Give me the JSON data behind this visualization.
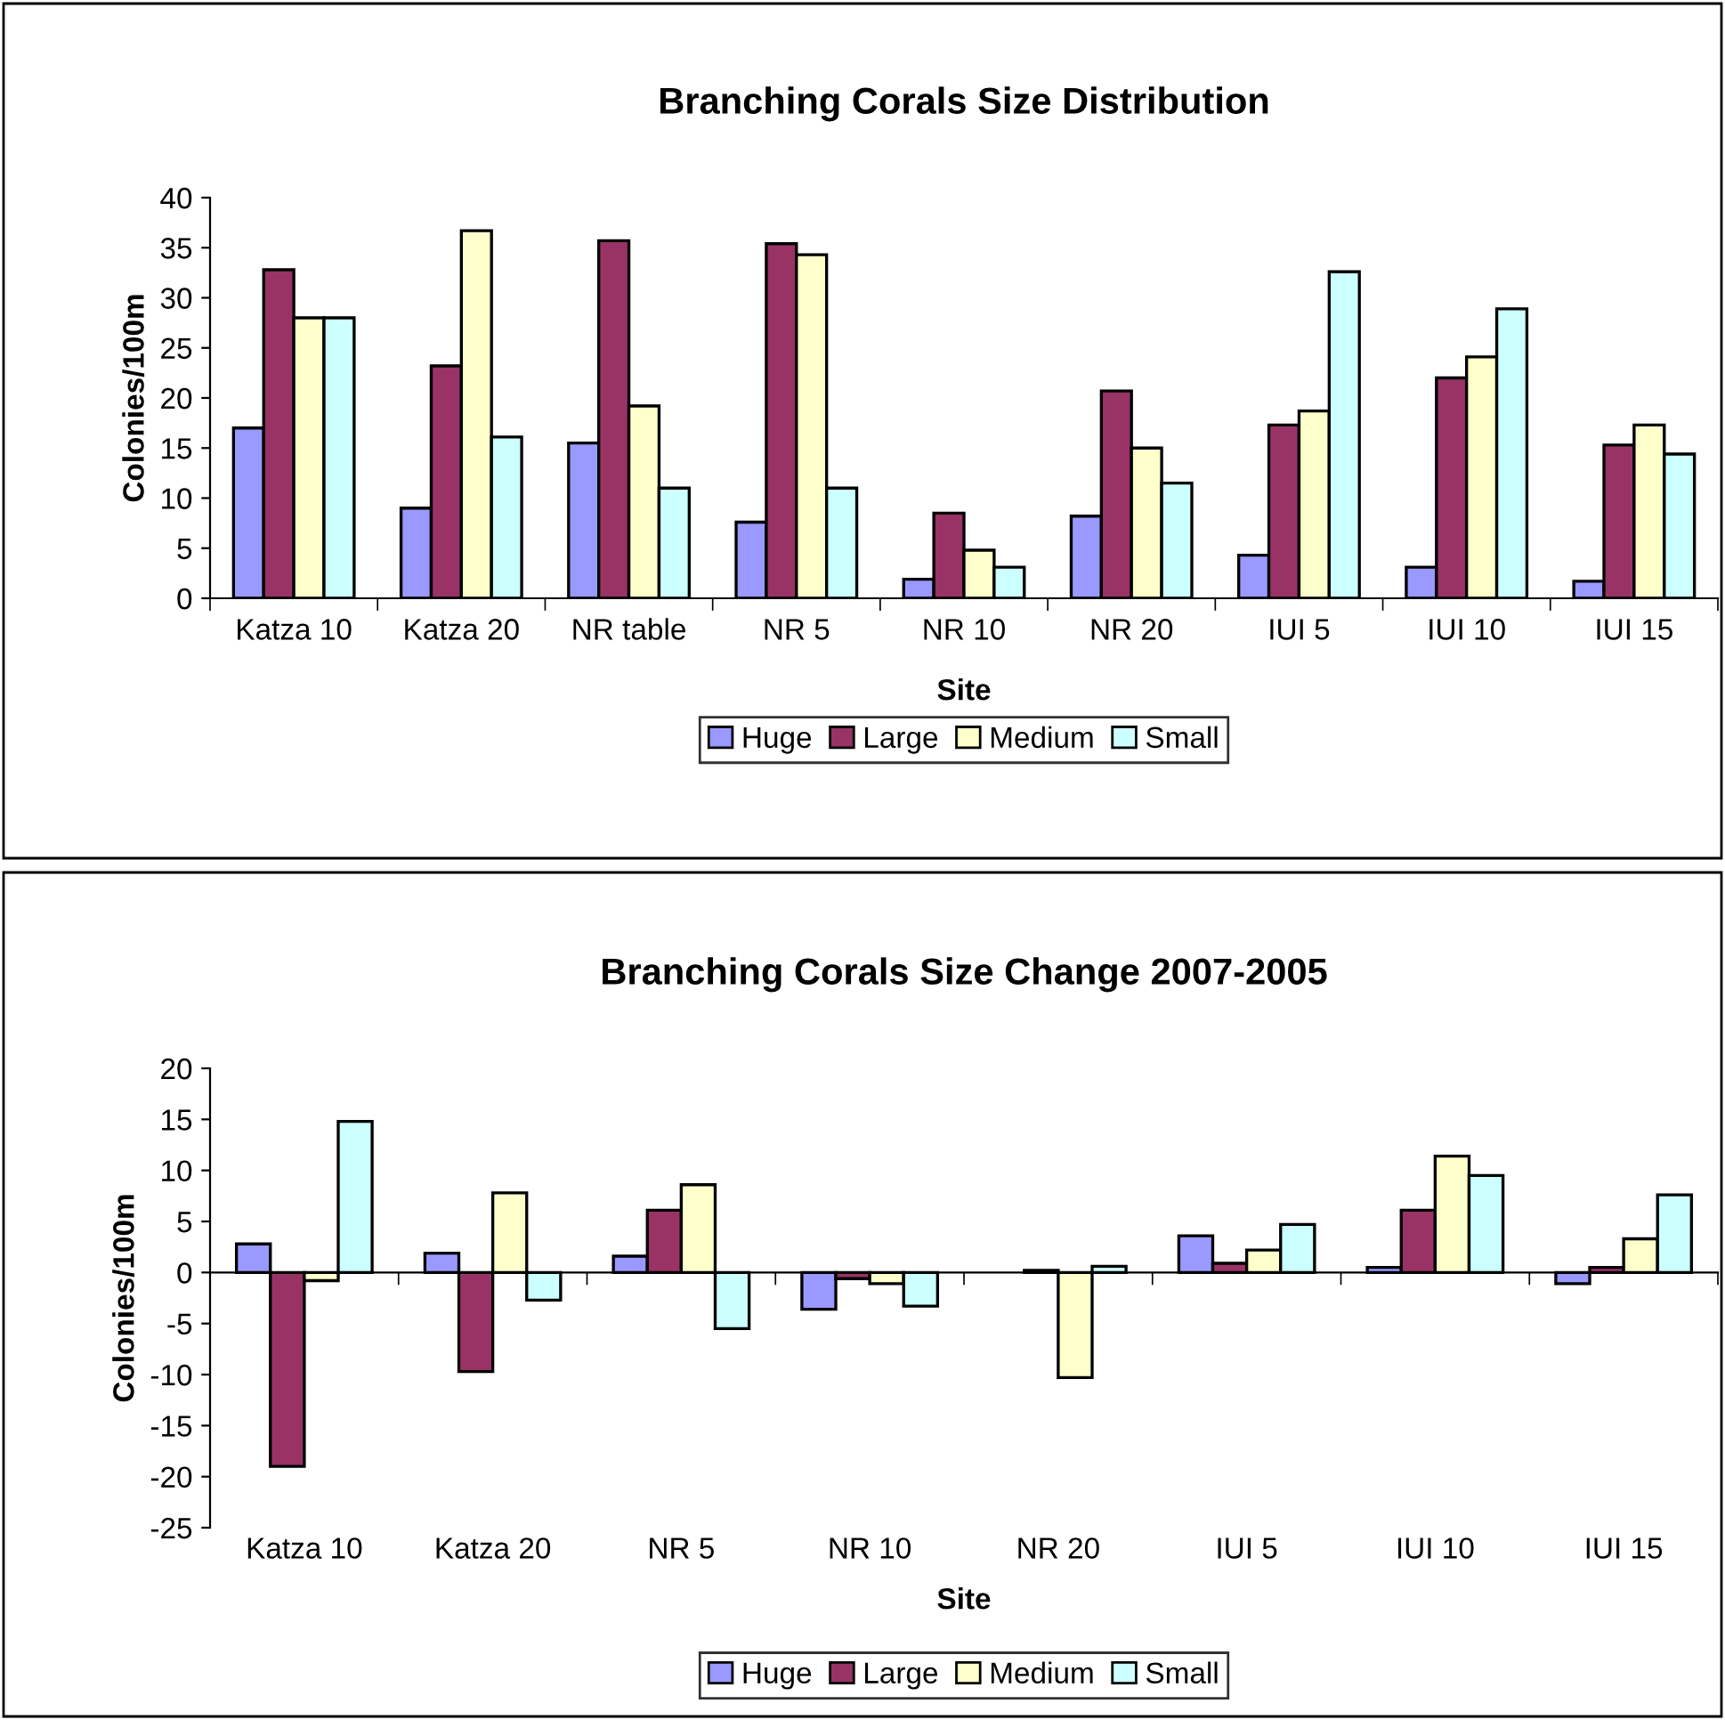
{
  "chart_data": [
    {
      "type": "bar",
      "title": "Branching Corals Size Distribution",
      "xlabel": "Site",
      "ylabel": "Colonies/100m",
      "categories": [
        "Katza 10",
        "Katza 20",
        "NR table",
        "NR 5",
        "NR 10",
        "NR 20",
        "IUI 5",
        "IUI 10",
        "IUI 15"
      ],
      "ylim": [
        0,
        40
      ],
      "yticks": [
        0,
        5,
        10,
        15,
        20,
        25,
        30,
        35,
        40
      ],
      "grid": false,
      "legend": "bottom",
      "series": [
        {
          "name": "Huge",
          "color": "#9999ff",
          "values": [
            17.0,
            9.0,
            15.5,
            7.6,
            1.9,
            8.2,
            4.3,
            3.1,
            1.7
          ]
        },
        {
          "name": "Large",
          "color": "#993366",
          "values": [
            32.8,
            23.2,
            35.7,
            35.4,
            8.5,
            20.7,
            17.3,
            22.0,
            15.3
          ]
        },
        {
          "name": "Medium",
          "color": "#ffffcc",
          "values": [
            28.0,
            36.7,
            19.2,
            34.3,
            4.8,
            15.0,
            18.7,
            24.1,
            17.3
          ]
        },
        {
          "name": "Small",
          "color": "#ccffff",
          "values": [
            28.0,
            16.1,
            11.0,
            11.0,
            3.1,
            11.5,
            32.6,
            28.9,
            14.4
          ]
        }
      ]
    },
    {
      "type": "bar",
      "title": "Branching Corals Size Change 2007-2005",
      "xlabel": "Site",
      "ylabel": "Colonies/100m",
      "categories": [
        "Katza 10",
        "Katza 20",
        "NR 5",
        "NR 10",
        "NR 20",
        "IUI 5",
        "IUI 10",
        "IUI 15"
      ],
      "ylim": [
        -25,
        20
      ],
      "yticks": [
        -25,
        -20,
        -15,
        -10,
        -5,
        0,
        5,
        10,
        15,
        20
      ],
      "legend": "bottom",
      "series": [
        {
          "name": "Huge",
          "color": "#9999ff",
          "values": [
            2.8,
            1.9,
            1.6,
            -3.6,
            null,
            3.6,
            0.5,
            -1.1
          ]
        },
        {
          "name": "Large",
          "color": "#993366",
          "values": [
            -19.0,
            -9.7,
            6.1,
            -0.6,
            0.2,
            0.9,
            6.1,
            0.5
          ]
        },
        {
          "name": "Medium",
          "color": "#ffffcc",
          "values": [
            -0.8,
            7.8,
            8.6,
            -1.1,
            -10.3,
            2.2,
            11.4,
            3.3
          ]
        },
        {
          "name": "Small",
          "color": "#ccffff",
          "values": [
            14.8,
            -2.7,
            -5.5,
            -3.3,
            0.6,
            4.7,
            9.5,
            7.6
          ]
        }
      ]
    }
  ]
}
